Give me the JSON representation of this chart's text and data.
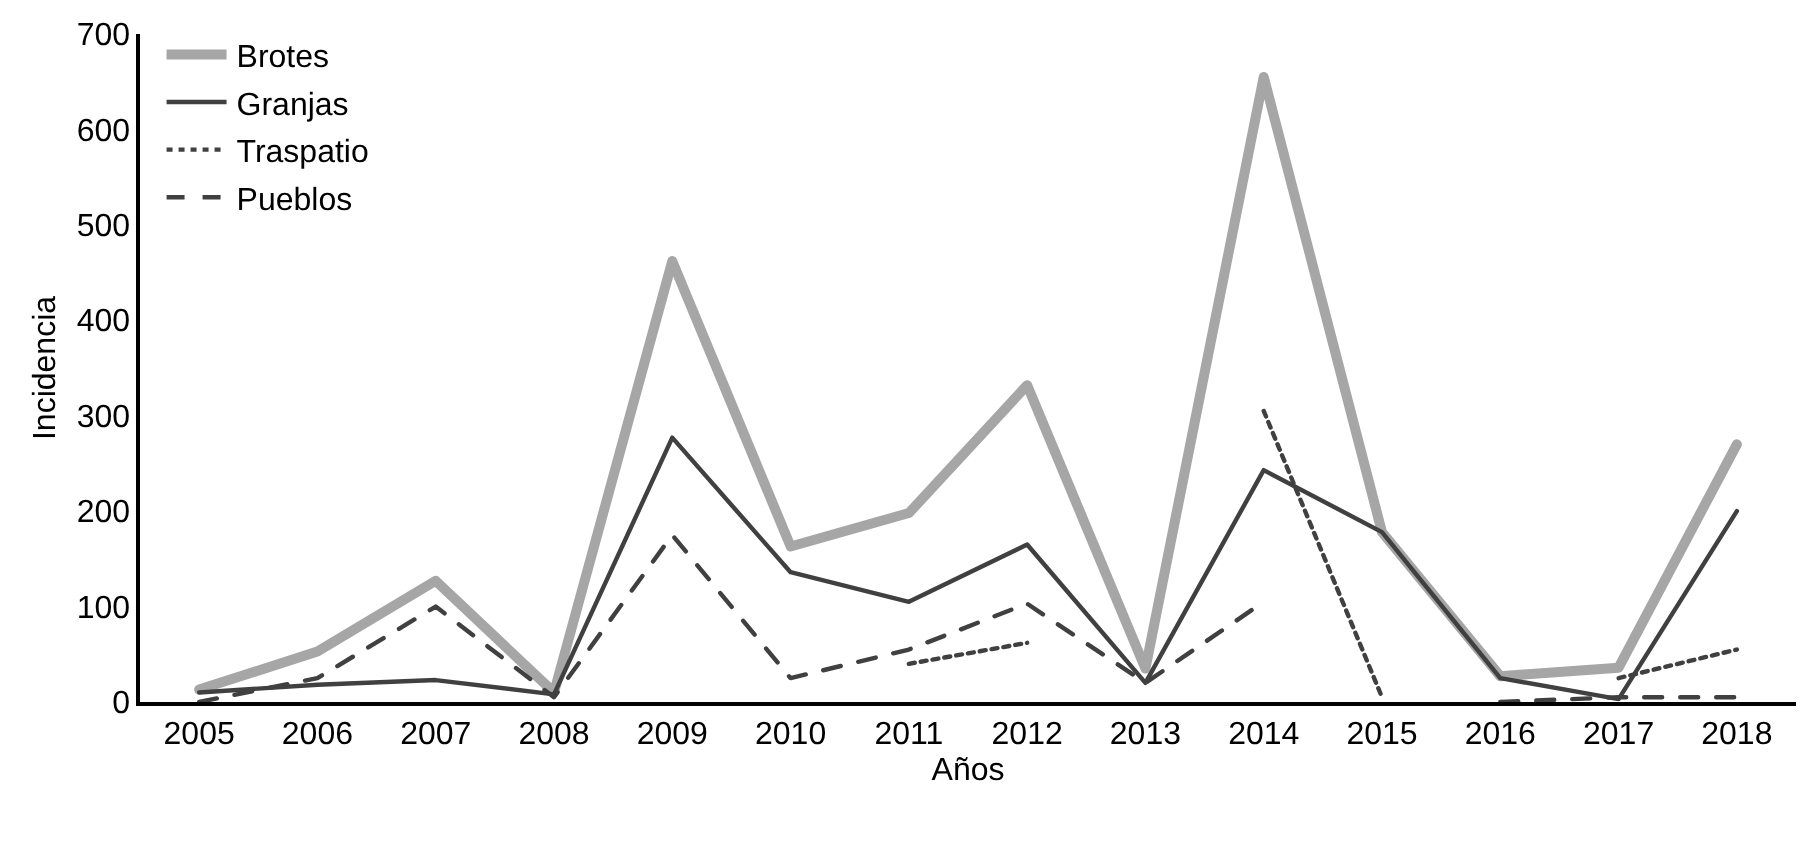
{
  "chart_data": {
    "type": "line",
    "xlabel": "Años",
    "ylabel": "Incidencia",
    "categories": [
      "2005",
      "2006",
      "2007",
      "2008",
      "2009",
      "2010",
      "2011",
      "2012",
      "2013",
      "2014",
      "2015",
      "2016",
      "2017",
      "2018"
    ],
    "series": [
      {
        "name": "Brotes",
        "color": "#a6a6a6",
        "line_style": "solid",
        "values": [
          13,
          53,
          127,
          10,
          462,
          163,
          198,
          332,
          35,
          655,
          178,
          27,
          36,
          270
        ]
      },
      {
        "name": "Granjas",
        "color": "#404040",
        "line_style": "solid",
        "values": [
          10,
          18,
          23,
          8,
          277,
          136,
          105,
          165,
          20,
          243,
          178,
          25,
          3,
          200
        ]
      },
      {
        "name": "Traspatio",
        "color": "#404040",
        "line_style": "dotted",
        "values": [
          null,
          null,
          null,
          null,
          null,
          null,
          40,
          62,
          null,
          305,
          5,
          null,
          25,
          55
        ]
      },
      {
        "name": "Pueblos",
        "color": "#404040",
        "line_style": "dashed",
        "values": [
          0,
          25,
          100,
          5,
          175,
          25,
          55,
          103,
          20,
          105,
          null,
          0,
          5,
          5
        ]
      }
    ],
    "ylim": [
      0,
      700
    ],
    "yticks": [
      0,
      100,
      200,
      300,
      400,
      500,
      600,
      700
    ],
    "grid": false,
    "legend": "top left",
    "marker": "none"
  }
}
